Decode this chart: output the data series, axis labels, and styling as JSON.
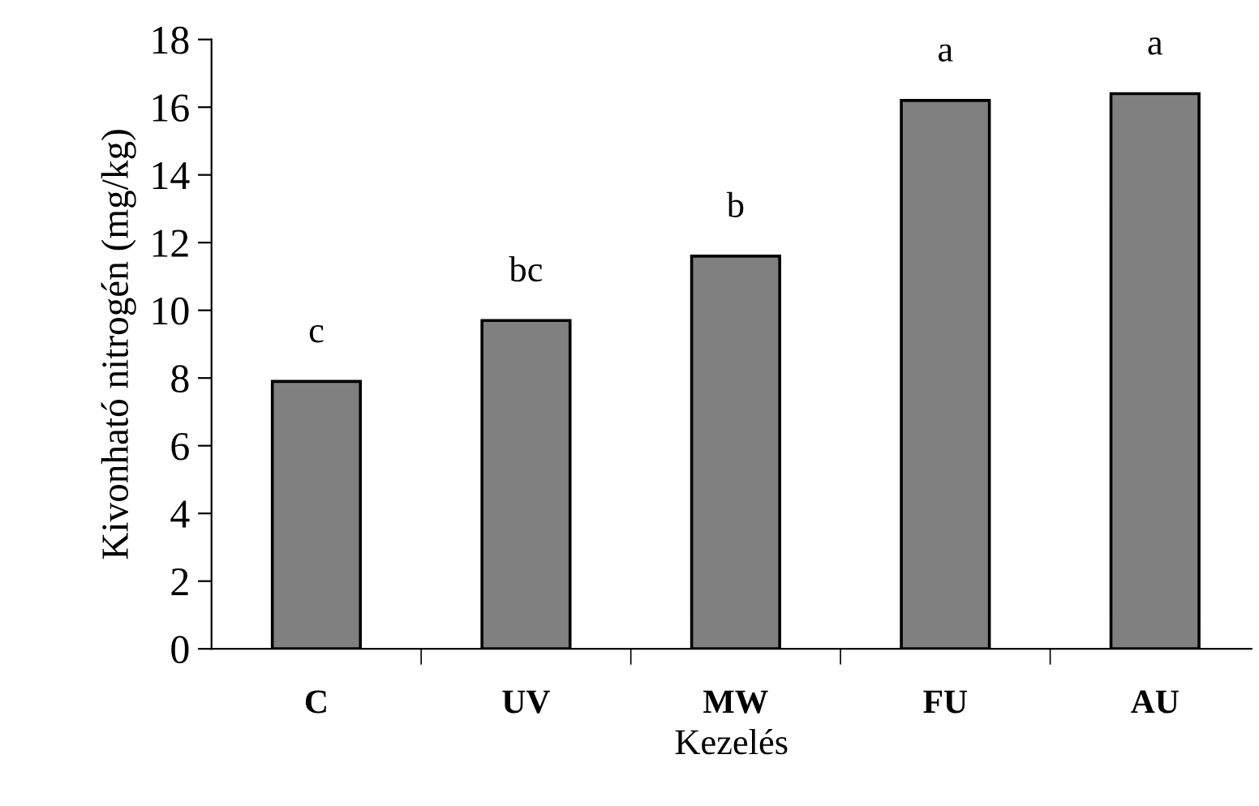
{
  "chart_data": {
    "type": "bar",
    "xlabel": "Kezelés",
    "ylabel": "Kivonható nitrogén (mg/kg)",
    "categories": [
      "C",
      "UV",
      "MW",
      "FU",
      "AU"
    ],
    "values": [
      7.9,
      9.7,
      11.6,
      16.2,
      16.4
    ],
    "color": "#808080",
    "ylim": [
      0,
      18
    ],
    "yticks": [
      0,
      2,
      4,
      6,
      8,
      10,
      12,
      14,
      16,
      18
    ],
    "annotations": [
      {
        "text": "c",
        "x": "C",
        "y": 7.9
      },
      {
        "text": "bc",
        "x": "UV",
        "y": 9.7
      },
      {
        "text": "b",
        "x": "MW",
        "y": 11.6
      },
      {
        "text": "a",
        "x": "FU",
        "y": 16.2
      },
      {
        "text": "a",
        "x": "AU",
        "y": 16.4
      }
    ]
  }
}
